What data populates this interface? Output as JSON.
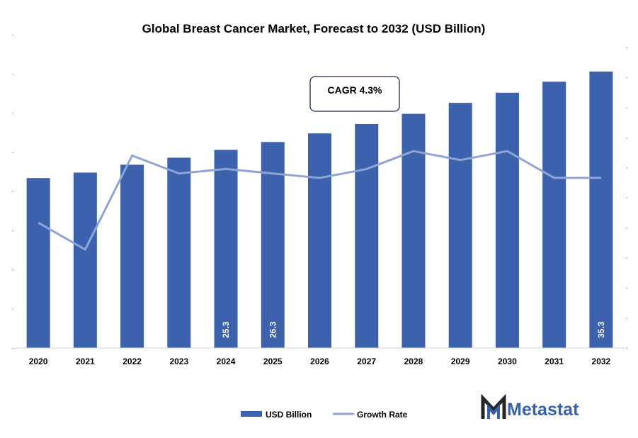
{
  "title": "Global Breast Cancer Market, Forecast to 2032 (USD Billion)",
  "colors": {
    "bar": "#3c62ad",
    "line": "#8fa4d6",
    "brand_blue": "#3761ad",
    "brand_dark": "#262626"
  },
  "annotation": "CAGR 4.3%",
  "brand": "Metastat",
  "chart_data": {
    "type": "bar",
    "categories": [
      "2020",
      "2021",
      "2022",
      "2023",
      "2024",
      "2025",
      "2026",
      "2027",
      "2028",
      "2029",
      "2030",
      "2031",
      "2032"
    ],
    "series": [
      {
        "name": "USD Billion",
        "type": "bar",
        "values": [
          21.7,
          22.4,
          23.4,
          24.3,
          25.3,
          26.3,
          27.4,
          28.6,
          29.9,
          31.3,
          32.6,
          34.0,
          35.3
        ],
        "data_labels": [
          "",
          "",
          "",
          "",
          "25.3",
          "26.3",
          "",
          "",
          "",
          "",
          "",
          "",
          "35.3"
        ]
      },
      {
        "name": "Growth Rate",
        "type": "line",
        "values": [
          2.8,
          2.2,
          4.3,
          3.9,
          4.0,
          3.9,
          3.8,
          4.0,
          4.4,
          4.2,
          4.4,
          3.8,
          3.8
        ]
      }
    ],
    "ylim_bar": [
      0,
      40
    ],
    "ylim_line": [
      0,
      7
    ],
    "grid": false,
    "legend": "bottom"
  }
}
